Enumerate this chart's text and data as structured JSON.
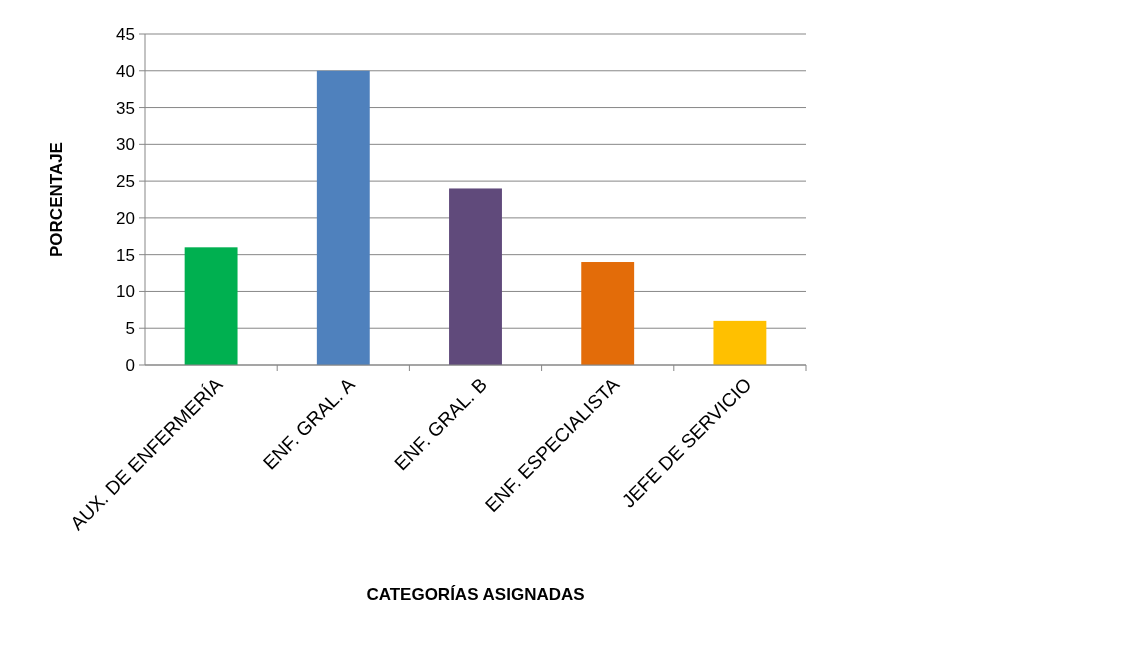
{
  "chart_data": {
    "type": "bar",
    "xlabel": "CATEGORÍAS ASIGNADAS",
    "ylabel": "PORCENTAJE",
    "categories": [
      "AUX. DE ENFERMERÍA",
      "ENF. GRAL. A",
      "ENF. GRAL. B",
      "ENF. ESPECIALISTA",
      "JEFE DE SERVICIO"
    ],
    "values": [
      16,
      40,
      24,
      14,
      6
    ],
    "colors": [
      "#00b050",
      "#4f81bd",
      "#604a7b",
      "#e36c09",
      "#ffc000"
    ],
    "ylim": [
      0,
      45
    ],
    "yticks": [
      0,
      5,
      10,
      15,
      20,
      25,
      30,
      35,
      40,
      45
    ],
    "grid": "y"
  }
}
